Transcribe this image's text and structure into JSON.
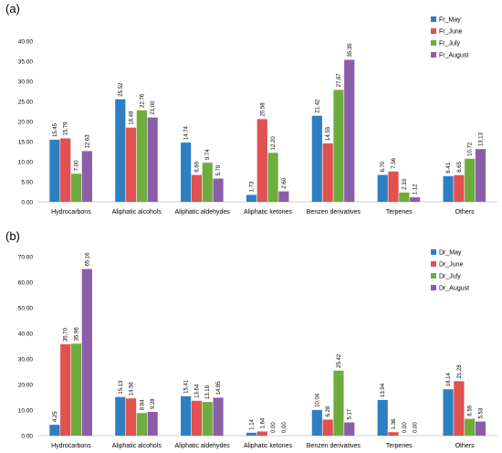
{
  "chart_data": [
    {
      "type": "bar",
      "panel_label": "(a)",
      "categories": [
        "Hydrocarbons",
        "Aliphatic alcohols",
        "Aliphatic aldehydes",
        "Aliphatic ketones",
        "Benzen derivatives",
        "Terpenes",
        "Others"
      ],
      "ylim": [
        0,
        40
      ],
      "yticks": [
        "0.00",
        "5.00",
        "10.00",
        "15.00",
        "20.00",
        "25.00",
        "30.00",
        "35.00",
        "40.00"
      ],
      "legend_position": "top-right",
      "grid": false,
      "series": [
        {
          "name": "Fr_May",
          "color": "#2e7fc2",
          "values": [
            15.45,
            25.52,
            14.74,
            1.73,
            21.42,
            6.7,
            6.41
          ],
          "labels": [
            "15.45",
            "25.52",
            "14.74",
            "1.73",
            "21.42",
            "6.70",
            "6.41"
          ]
        },
        {
          "name": "Fr_June",
          "color": "#e0514f",
          "values": [
            15.79,
            18.48,
            6.69,
            20.58,
            14.55,
            7.56,
            6.65
          ],
          "labels": [
            "15.79",
            "18.48",
            "6.69",
            "20.58",
            "14.55",
            "7.56",
            "6.65"
          ]
        },
        {
          "name": "Fr_July",
          "color": "#6fac3e",
          "values": [
            7.0,
            22.76,
            9.74,
            12.2,
            27.87,
            2.33,
            10.72
          ],
          "labels": [
            "7.00",
            "22.76",
            "9.74",
            "12.20",
            "27.87",
            "2.33",
            "10.72"
          ]
        },
        {
          "name": "Fr_August",
          "color": "#8a5ea8",
          "values": [
            12.63,
            21.0,
            5.79,
            2.6,
            35.35,
            1.12,
            13.13
          ],
          "labels": [
            "12.63",
            "21.00",
            "5.79",
            "2.60",
            "35.35",
            "1.12",
            "13.13"
          ]
        }
      ]
    },
    {
      "type": "bar",
      "panel_label": "(b)",
      "categories": [
        "Hydrocarbons",
        "Aliphatic alcohols",
        "Aliphatic aldehydes",
        "Aliphatic ketones",
        "Benzen derivatives",
        "Terpenes",
        "Others"
      ],
      "ylim": [
        0,
        70
      ],
      "yticks": [
        "0.00",
        "10.00",
        "20.00",
        "30.00",
        "40.00",
        "50.00",
        "60.00",
        "70.00"
      ],
      "legend_position": "top-right",
      "grid": false,
      "series": [
        {
          "name": "Dr_May",
          "color": "#2e7fc2",
          "values": [
            4.25,
            15.13,
            15.41,
            1.14,
            10.04,
            13.94,
            18.14
          ],
          "labels": [
            "4.25",
            "15.13",
            "15.41",
            "1.14",
            "10.04",
            "13.94",
            "18.14"
          ]
        },
        {
          "name": "Dr_June",
          "color": "#e0514f",
          "values": [
            35.7,
            14.56,
            13.64,
            1.64,
            6.28,
            1.36,
            21.28
          ],
          "labels": [
            "35.70",
            "14.56",
            "13.64",
            "1.64",
            "6.28",
            "1.36",
            "21.28"
          ]
        },
        {
          "name": "Dr_July",
          "color": "#6fac3e",
          "values": [
            35.96,
            8.84,
            13.18,
            0.0,
            25.42,
            0.0,
            6.59
          ],
          "labels": [
            "35.96",
            "8.84",
            "13.18",
            "0.00",
            "25.42",
            "0.00",
            "6.59"
          ]
        },
        {
          "name": "Dr_August",
          "color": "#8a5ea8",
          "values": [
            65.16,
            9.28,
            14.85,
            0.0,
            5.17,
            0.0,
            5.53
          ],
          "labels": [
            "65.16",
            "9.28",
            "14.85",
            "0.00",
            "5.17",
            "0.00",
            "5.53"
          ]
        }
      ]
    }
  ]
}
